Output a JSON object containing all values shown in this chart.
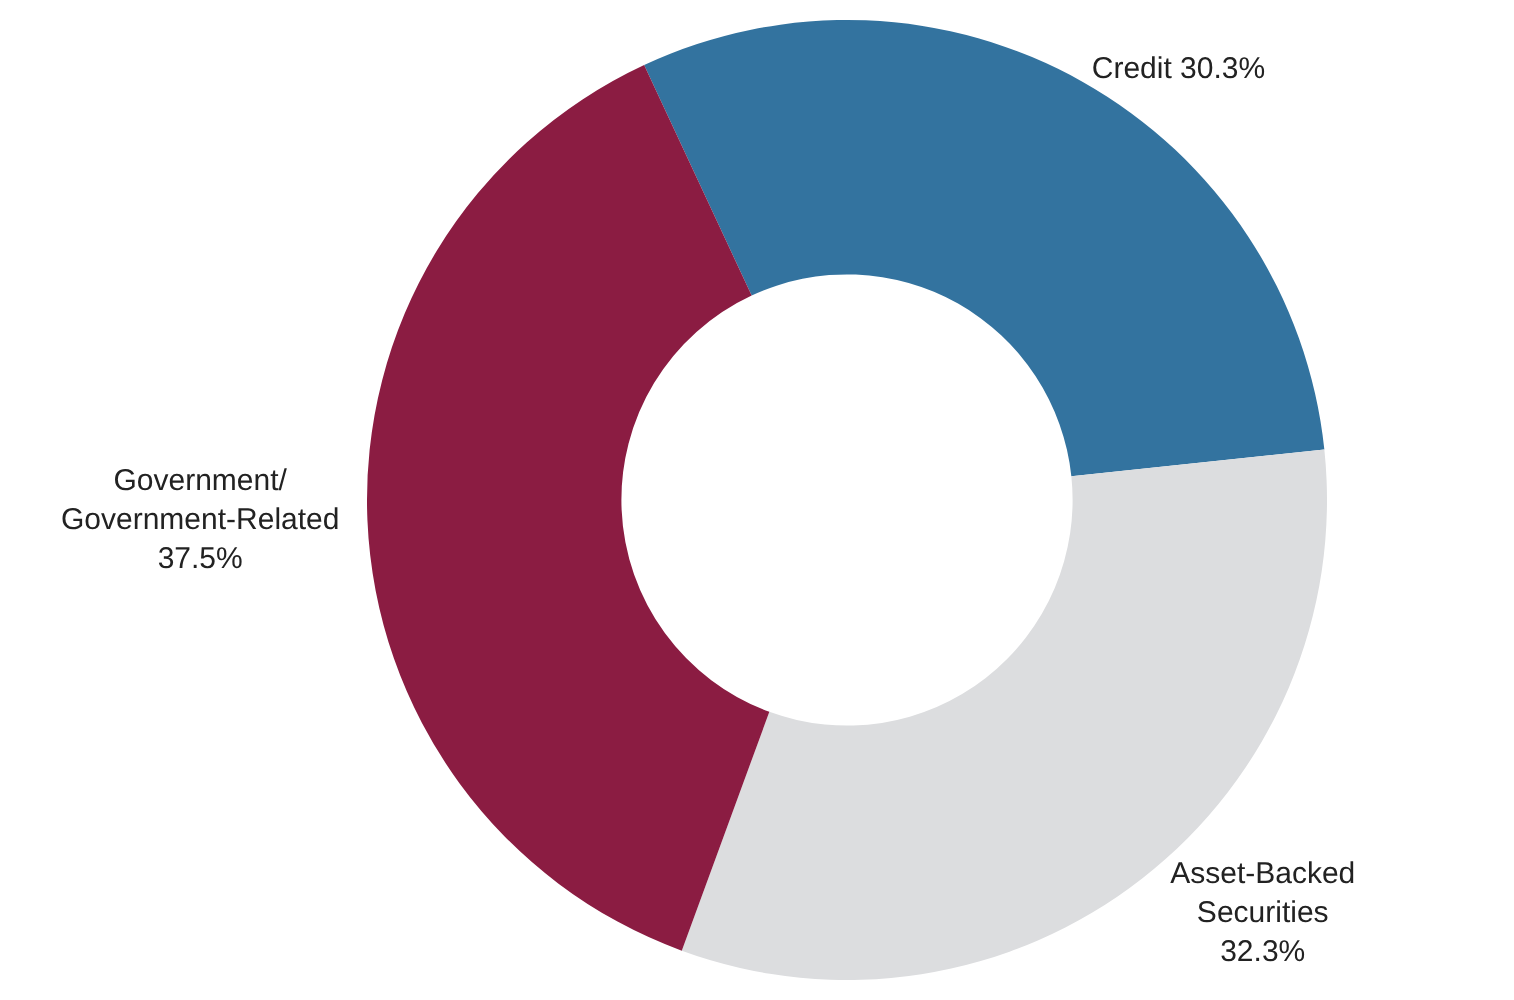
{
  "chart_data": {
    "type": "donut",
    "categories": [
      "Credit",
      "Asset-Backed Securities",
      "Government/ Government-Related"
    ],
    "values": [
      30.3,
      32.3,
      37.5
    ],
    "colors": [
      "#33739f",
      "#dcdddf",
      "#8b1c42"
    ],
    "value_labels": [
      "30.3%",
      "32.3%",
      "37.5%"
    ],
    "legend": false
  }
}
